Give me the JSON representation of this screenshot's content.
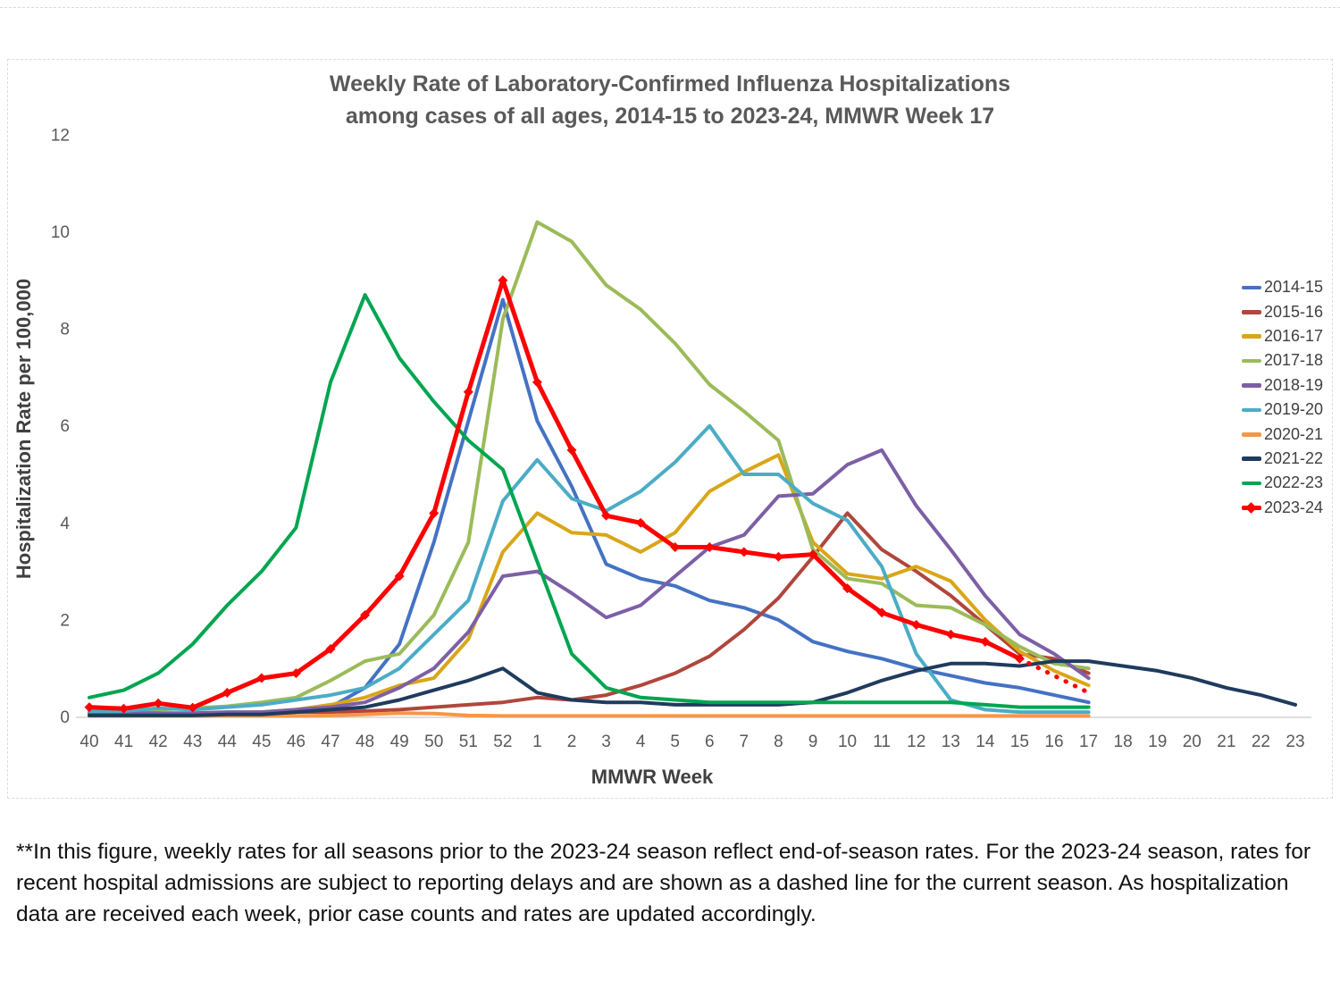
{
  "title": {
    "line1": "Weekly Rate of Laboratory-Confirmed Influenza Hospitalizations",
    "line2": "among cases of all ages, 2014-15 to 2023-24, MMWR Week 17"
  },
  "footnote": "**In this figure, weekly rates for all seasons prior to the 2023-24 season reflect end-of-season rates. For the 2023-24 season, rates for recent hospital admissions are subject to reporting delays and are shown as a dashed line for the current season. As hospitalization data are received each week, prior case counts and rates are updated accordingly.",
  "chart_data": {
    "type": "line",
    "title": "Weekly Rate of Laboratory-Confirmed Influenza Hospitalizations among cases of all ages, 2014-15 to 2023-24, MMWR Week 17",
    "xlabel": "MMWR Week",
    "ylabel": "Hospitalization Rate per 100,000",
    "ylim": [
      0,
      12
    ],
    "ytick_step": 2,
    "grid": false,
    "legend_position": "right",
    "categories": [
      "40",
      "41",
      "42",
      "43",
      "44",
      "45",
      "46",
      "47",
      "48",
      "49",
      "50",
      "51",
      "52",
      "1",
      "2",
      "3",
      "4",
      "5",
      "6",
      "7",
      "8",
      "9",
      "10",
      "11",
      "12",
      "13",
      "14",
      "15",
      "16",
      "17",
      "18",
      "19",
      "20",
      "21",
      "22",
      "23"
    ],
    "series": [
      {
        "name": "2014-15",
        "color": "#4472C4",
        "values": [
          0.05,
          0.05,
          0.05,
          0.05,
          0.05,
          0.08,
          0.1,
          0.2,
          0.6,
          1.5,
          3.6,
          6.1,
          8.6,
          6.1,
          4.75,
          3.15,
          2.85,
          2.7,
          2.4,
          2.25,
          2.0,
          1.55,
          1.35,
          1.2,
          1.0,
          0.85,
          0.7,
          0.6,
          0.45,
          0.3,
          null,
          null,
          null,
          null,
          null,
          null
        ]
      },
      {
        "name": "2015-16",
        "color": "#B0463C",
        "values": [
          0.05,
          0.05,
          0.05,
          0.05,
          0.08,
          0.1,
          0.1,
          0.1,
          0.12,
          0.15,
          0.2,
          0.25,
          0.3,
          0.4,
          0.35,
          0.45,
          0.65,
          0.9,
          1.25,
          1.8,
          2.45,
          3.3,
          4.2,
          3.45,
          3.0,
          2.5,
          1.9,
          1.3,
          1.2,
          0.9,
          null,
          null,
          null,
          null,
          null,
          null
        ]
      },
      {
        "name": "2016-17",
        "color": "#D9A618",
        "values": [
          0.05,
          0.05,
          0.05,
          0.05,
          0.07,
          0.1,
          0.15,
          0.25,
          0.4,
          0.65,
          0.8,
          1.6,
          3.4,
          4.2,
          3.8,
          3.75,
          3.4,
          3.8,
          4.65,
          5.05,
          5.4,
          3.6,
          2.95,
          2.85,
          3.1,
          2.8,
          2.0,
          1.35,
          0.95,
          0.65,
          null,
          null,
          null,
          null,
          null,
          null
        ]
      },
      {
        "name": "2017-18",
        "color": "#9BBB59",
        "values": [
          0.1,
          0.12,
          0.15,
          0.18,
          0.22,
          0.3,
          0.4,
          0.75,
          1.15,
          1.3,
          2.1,
          3.6,
          8.2,
          10.2,
          9.8,
          8.9,
          8.4,
          7.7,
          6.85,
          6.3,
          5.7,
          3.45,
          2.85,
          2.75,
          2.3,
          2.25,
          1.9,
          1.45,
          1.1,
          1.0,
          null,
          null,
          null,
          null,
          null,
          null
        ]
      },
      {
        "name": "2018-19",
        "color": "#7D5FA6",
        "values": [
          0.08,
          0.08,
          0.08,
          0.08,
          0.1,
          0.1,
          0.15,
          0.2,
          0.3,
          0.6,
          1.0,
          1.75,
          2.9,
          3.0,
          2.55,
          2.05,
          2.3,
          2.9,
          3.5,
          3.75,
          4.55,
          4.6,
          5.2,
          5.5,
          4.35,
          3.45,
          2.5,
          1.7,
          1.3,
          0.8,
          null,
          null,
          null,
          null,
          null,
          null
        ]
      },
      {
        "name": "2019-20",
        "color": "#4BACC6",
        "values": [
          0.12,
          0.12,
          0.18,
          0.15,
          0.2,
          0.25,
          0.35,
          0.45,
          0.6,
          1.0,
          1.7,
          2.4,
          4.45,
          5.3,
          4.5,
          4.25,
          4.65,
          5.25,
          6.0,
          5.0,
          5.0,
          4.4,
          4.05,
          3.1,
          1.3,
          0.35,
          0.15,
          0.1,
          0.1,
          0.1,
          null,
          null,
          null,
          null,
          null,
          null
        ]
      },
      {
        "name": "2020-21",
        "color": "#F79646",
        "values": [
          0.02,
          0.02,
          0.02,
          0.02,
          0.02,
          0.02,
          0.02,
          0.03,
          0.05,
          0.08,
          0.07,
          0.03,
          0.02,
          0.02,
          0.02,
          0.02,
          0.02,
          0.02,
          0.02,
          0.02,
          0.02,
          0.02,
          0.02,
          0.02,
          0.02,
          0.02,
          0.02,
          0.02,
          0.02,
          0.02,
          null,
          null,
          null,
          null,
          null,
          null
        ]
      },
      {
        "name": "2021-22",
        "color": "#1F3B5D",
        "values": [
          0.03,
          0.03,
          0.03,
          0.03,
          0.05,
          0.05,
          0.1,
          0.15,
          0.2,
          0.35,
          0.55,
          0.75,
          1.0,
          0.5,
          0.35,
          0.3,
          0.3,
          0.25,
          0.25,
          0.25,
          0.25,
          0.3,
          0.5,
          0.75,
          0.95,
          1.1,
          1.1,
          1.05,
          1.15,
          1.15,
          1.05,
          0.95,
          0.8,
          0.6,
          0.45,
          0.25
        ]
      },
      {
        "name": "2022-23",
        "color": "#00A550",
        "values": [
          0.4,
          0.55,
          0.9,
          1.5,
          2.3,
          3.0,
          3.9,
          6.9,
          8.7,
          7.4,
          6.5,
          5.7,
          5.1,
          3.2,
          1.3,
          0.6,
          0.4,
          0.35,
          0.3,
          0.3,
          0.3,
          0.3,
          0.3,
          0.3,
          0.3,
          0.3,
          0.25,
          0.2,
          0.2,
          0.2,
          null,
          null,
          null,
          null,
          null,
          null
        ]
      },
      {
        "name": "2023-24",
        "color": "#FF0000",
        "marker": "diamond",
        "width": 5,
        "values": [
          0.2,
          0.17,
          0.28,
          0.19,
          0.5,
          0.8,
          0.9,
          1.4,
          2.1,
          2.9,
          4.2,
          6.7,
          9.0,
          6.9,
          5.5,
          4.15,
          4.0,
          3.5,
          3.5,
          3.4,
          3.3,
          3.35,
          2.65,
          2.15,
          1.9,
          1.7,
          1.55,
          1.2,
          null,
          null,
          null,
          null,
          null,
          null,
          null,
          null
        ],
        "dashed_values": [
          null,
          null,
          null,
          null,
          null,
          null,
          null,
          null,
          null,
          null,
          null,
          null,
          null,
          null,
          null,
          null,
          null,
          null,
          null,
          null,
          null,
          null,
          null,
          null,
          null,
          null,
          null,
          1.2,
          0.85,
          0.5,
          null,
          null,
          null,
          null,
          null,
          null
        ]
      }
    ]
  },
  "axis": {
    "y_ticks": [
      "0",
      "2",
      "4",
      "6",
      "8",
      "10",
      "12"
    ],
    "x_label": "MMWR Week",
    "y_label": "Hospitalization Rate per 100,000"
  }
}
